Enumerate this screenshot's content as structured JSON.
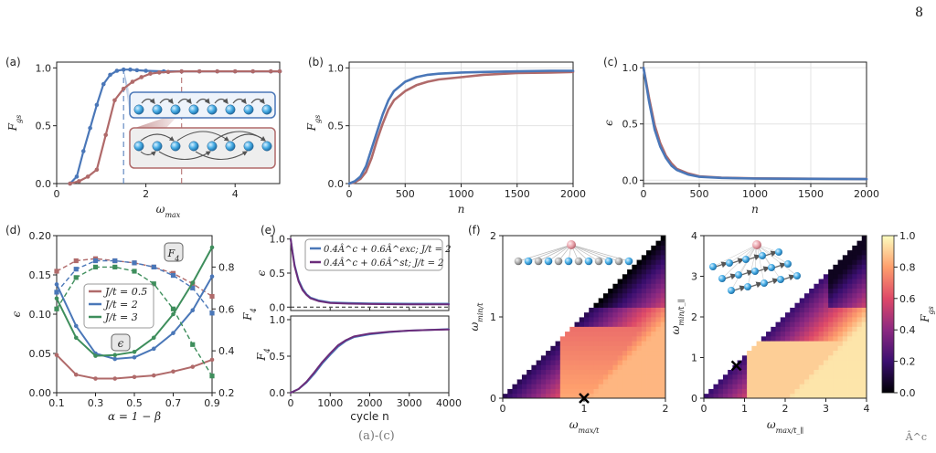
{
  "page": {
    "number": "8",
    "bottom_fragment": "(a)-(c)",
    "corner_fragment": "Â^c"
  },
  "colors": {
    "blue": "#4a77b8",
    "red": "#b06a6a",
    "green": "#3e8e5c",
    "purple": "#6b2c7a",
    "grid": "#e3e3e3"
  },
  "panels": {
    "a": "(a)",
    "b": "(b)",
    "c": "(c)",
    "d": "(d)",
    "e": "(e)",
    "f": "(f)"
  },
  "icons": {
    "chain_nn": "nearest-neighbour-chain-icon",
    "chain_long": "long-range-chain-icon",
    "triangle_lattice": "star-chain-icon",
    "ladder_lattice": "ladder-lattice-icon"
  },
  "chart_data": [
    {
      "id": "a",
      "type": "line",
      "xlabel": "ω_max",
      "ylabel": "F_gs",
      "xlim": [
        0,
        5
      ],
      "ylim": [
        0,
        1.05
      ],
      "xticks": [
        "0",
        "2",
        "4"
      ],
      "yticks": [
        "0.0",
        "0.5",
        "1.0"
      ],
      "vlines": [
        1.5,
        2.8
      ],
      "series": [
        {
          "color": "blue",
          "x": [
            0.3,
            0.45,
            0.6,
            0.75,
            0.9,
            1.05,
            1.2,
            1.35,
            1.5,
            1.65,
            1.8,
            2.0,
            2.4,
            2.8,
            3.2,
            3.6,
            4.0,
            4.4,
            4.8,
            5.0
          ],
          "y": [
            0.0,
            0.06,
            0.28,
            0.48,
            0.68,
            0.86,
            0.94,
            0.975,
            0.985,
            0.985,
            0.98,
            0.975,
            0.97,
            0.97,
            0.97,
            0.97,
            0.97,
            0.97,
            0.97,
            0.97
          ]
        },
        {
          "color": "red",
          "x": [
            0.3,
            0.5,
            0.7,
            0.9,
            1.1,
            1.3,
            1.5,
            1.7,
            1.9,
            2.1,
            2.3,
            2.5,
            2.8,
            3.2,
            3.6,
            4.0,
            4.4,
            4.8,
            5.0
          ],
          "y": [
            0.0,
            0.02,
            0.06,
            0.12,
            0.42,
            0.72,
            0.82,
            0.88,
            0.92,
            0.95,
            0.96,
            0.965,
            0.97,
            0.97,
            0.97,
            0.97,
            0.97,
            0.97,
            0.97
          ]
        }
      ]
    },
    {
      "id": "b",
      "type": "line",
      "xlabel": "n",
      "ylabel": "F_gs",
      "xlim": [
        0,
        2000
      ],
      "ylim": [
        0,
        1.05
      ],
      "xticks": [
        "0",
        "500",
        "1000",
        "1500",
        "2000"
      ],
      "yticks": [
        "0.0",
        "0.5",
        "1.0"
      ],
      "series": [
        {
          "color": "blue",
          "x": [
            0,
            50,
            100,
            150,
            200,
            250,
            300,
            350,
            400,
            500,
            600,
            700,
            800,
            1000,
            1200,
            1500,
            1800,
            2000
          ],
          "y": [
            0,
            0.02,
            0.06,
            0.15,
            0.3,
            0.45,
            0.6,
            0.72,
            0.8,
            0.88,
            0.92,
            0.94,
            0.95,
            0.96,
            0.965,
            0.97,
            0.975,
            0.975
          ]
        },
        {
          "color": "red",
          "x": [
            0,
            50,
            100,
            150,
            200,
            250,
            300,
            350,
            400,
            500,
            600,
            700,
            800,
            1000,
            1200,
            1500,
            1800,
            2000
          ],
          "y": [
            0,
            0.01,
            0.04,
            0.1,
            0.22,
            0.38,
            0.52,
            0.64,
            0.72,
            0.8,
            0.85,
            0.88,
            0.9,
            0.92,
            0.94,
            0.955,
            0.96,
            0.965
          ]
        }
      ]
    },
    {
      "id": "c",
      "type": "line",
      "xlabel": "n",
      "ylabel": "ϵ",
      "xlim": [
        0,
        2000
      ],
      "ylim": [
        -0.03,
        1.05
      ],
      "xticks": [
        "0",
        "500",
        "1000",
        "1500",
        "2000"
      ],
      "yticks": [
        "0.0",
        "0.5",
        "1.0"
      ],
      "series": [
        {
          "color": "blue",
          "x": [
            0,
            25,
            50,
            100,
            150,
            200,
            250,
            300,
            400,
            500,
            700,
            1000,
            1500,
            2000
          ],
          "y": [
            1.0,
            0.85,
            0.7,
            0.45,
            0.3,
            0.2,
            0.13,
            0.09,
            0.05,
            0.03,
            0.02,
            0.015,
            0.012,
            0.01
          ]
        },
        {
          "color": "red",
          "x": [
            0,
            25,
            50,
            100,
            150,
            200,
            250,
            300,
            400,
            500,
            700,
            1000,
            1500,
            2000
          ],
          "y": [
            1.0,
            0.87,
            0.73,
            0.49,
            0.33,
            0.22,
            0.15,
            0.1,
            0.06,
            0.035,
            0.022,
            0.016,
            0.013,
            0.011
          ]
        }
      ]
    },
    {
      "id": "d",
      "type": "line",
      "xlabel": "α = 1 − β",
      "ylabel": "ϵ",
      "y2label": "F_4",
      "xlim": [
        0.1,
        0.9
      ],
      "ylim": [
        0,
        0.2
      ],
      "y2lim": [
        0.2,
        0.95
      ],
      "xticks": [
        "0.1",
        "0.3",
        "0.5",
        "0.7",
        "0.9"
      ],
      "xtickvals": [
        0.1,
        0.3,
        0.5,
        0.7,
        0.9
      ],
      "yticks": [
        "0.00",
        "0.05",
        "0.10",
        "0.15",
        "0.20"
      ],
      "ytickvals": [
        0,
        0.05,
        0.1,
        0.15,
        0.2
      ],
      "y2ticks": [
        "0.2",
        "0.4",
        "0.6",
        "0.8"
      ],
      "y2tickvals": [
        0.2,
        0.4,
        0.6,
        0.8
      ],
      "legend": [
        "J/t = 0.5",
        "J/t = 2",
        "J/t = 3"
      ],
      "annotations": [
        "F_4",
        "ϵ"
      ],
      "x": [
        0.1,
        0.2,
        0.3,
        0.4,
        0.5,
        0.6,
        0.7,
        0.8,
        0.9
      ],
      "series": [
        {
          "name": "J/t = 0.5",
          "color": "red",
          "eps": [
            0.048,
            0.023,
            0.018,
            0.018,
            0.02,
            0.022,
            0.027,
            0.033,
            0.042
          ],
          "F4": [
            0.78,
            0.83,
            0.84,
            0.83,
            0.82,
            0.8,
            0.77,
            0.72,
            0.66
          ]
        },
        {
          "name": "J/t = 2",
          "color": "blue",
          "eps": [
            0.138,
            0.085,
            0.05,
            0.043,
            0.045,
            0.056,
            0.076,
            0.105,
            0.148
          ],
          "F4": [
            0.68,
            0.79,
            0.83,
            0.83,
            0.82,
            0.8,
            0.76,
            0.7,
            0.58
          ]
        },
        {
          "name": "J/t = 3",
          "color": "green",
          "eps": [
            0.12,
            0.07,
            0.047,
            0.048,
            0.052,
            0.07,
            0.1,
            0.14,
            0.185
          ],
          "F4": [
            0.6,
            0.75,
            0.8,
            0.8,
            0.78,
            0.72,
            0.6,
            0.43,
            0.28
          ]
        }
      ]
    },
    {
      "id": "e_top",
      "type": "line",
      "ylabel": "ϵ",
      "xlim": [
        0,
        4000
      ],
      "ylim": [
        -0.05,
        1.05
      ],
      "yticks": [
        "0.0",
        "0.5",
        "1.0"
      ],
      "hline": 0.0,
      "legend": [
        "0.4Â^c + 0.6Â^exc;  J/t = 2",
        "0.4Â^c + 0.6Â^st;   J/t = 2"
      ],
      "series": [
        {
          "color": "blue",
          "x": [
            0,
            50,
            100,
            200,
            300,
            400,
            500,
            700,
            1000,
            1500,
            2000,
            3000,
            4000
          ],
          "y": [
            1.0,
            0.8,
            0.62,
            0.4,
            0.27,
            0.19,
            0.14,
            0.1,
            0.07,
            0.06,
            0.055,
            0.05,
            0.05
          ]
        },
        {
          "color": "purple",
          "x": [
            0,
            50,
            100,
            200,
            300,
            400,
            500,
            700,
            1000,
            1500,
            2000,
            3000,
            4000
          ],
          "y": [
            1.0,
            0.78,
            0.6,
            0.38,
            0.25,
            0.18,
            0.13,
            0.09,
            0.06,
            0.05,
            0.045,
            0.04,
            0.04
          ]
        }
      ]
    },
    {
      "id": "e_bottom",
      "type": "line",
      "xlabel": "cycle n",
      "ylabel": "F_4",
      "xlim": [
        0,
        4000
      ],
      "ylim": [
        0,
        1.05
      ],
      "xticks": [
        "0",
        "1000",
        "2000",
        "3000",
        "4000"
      ],
      "yticks": [
        "0.0",
        "0.5",
        "1.0"
      ],
      "series": [
        {
          "color": "blue",
          "x": [
            0,
            200,
            400,
            600,
            800,
            1000,
            1200,
            1400,
            1600,
            2000,
            2500,
            3000,
            3500,
            4000
          ],
          "y": [
            0.0,
            0.05,
            0.14,
            0.26,
            0.4,
            0.52,
            0.63,
            0.71,
            0.76,
            0.8,
            0.83,
            0.85,
            0.86,
            0.87
          ]
        },
        {
          "color": "purple",
          "x": [
            0,
            200,
            400,
            600,
            800,
            1000,
            1200,
            1400,
            1600,
            2000,
            2500,
            3000,
            3500,
            4000
          ],
          "y": [
            0.0,
            0.05,
            0.15,
            0.28,
            0.42,
            0.54,
            0.65,
            0.72,
            0.77,
            0.81,
            0.835,
            0.85,
            0.86,
            0.865
          ]
        }
      ]
    },
    {
      "id": "f_left",
      "type": "heatmap",
      "xlabel": "ω_max/t",
      "ylabel": "ω_min/t",
      "xlim": [
        0,
        2
      ],
      "ylim": [
        0,
        2
      ],
      "xticks": [
        "0",
        "1",
        "2"
      ],
      "yticks": [
        "0",
        "1",
        "2"
      ],
      "marker": [
        1.0,
        0.0
      ]
    },
    {
      "id": "f_right",
      "type": "heatmap",
      "xlabel": "ω_max/t_∥",
      "ylabel": "ω_min/t_∥",
      "xlim": [
        0,
        4
      ],
      "ylim": [
        0,
        4
      ],
      "xticks": [
        "0",
        "1",
        "2",
        "3",
        "4"
      ],
      "yticks": [
        "0",
        "1",
        "2",
        "3",
        "4"
      ],
      "marker": [
        0.8,
        0.8
      ],
      "colorbar": {
        "label": "F_gs",
        "ticks": [
          "0.0",
          "0.2",
          "0.4",
          "0.6",
          "0.8",
          "1.0"
        ]
      }
    }
  ]
}
